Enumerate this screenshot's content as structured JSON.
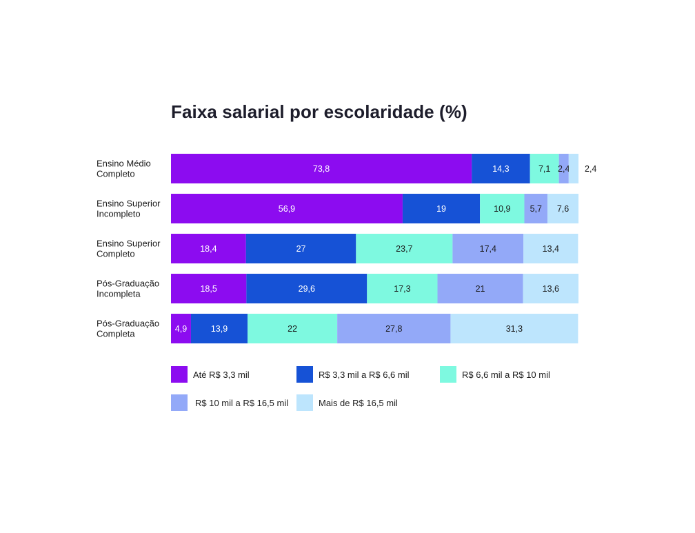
{
  "chart_data": {
    "type": "bar",
    "orientation": "horizontal",
    "stacked": true,
    "title": "Faixa salarial por escolaridade (%)",
    "categories": [
      [
        "Ensino Médio",
        "Completo"
      ],
      [
        "Ensino Superior",
        "Incompleto"
      ],
      [
        "Ensino Superior",
        "Completo"
      ],
      [
        "Pós-Graduação",
        "Incompleta"
      ],
      [
        "Pós-Graduação",
        "Completa"
      ]
    ],
    "series": [
      {
        "name": "Até R$ 3,3 mil",
        "color": "#8c0cf0",
        "label_color": "#ffffff",
        "values": [
          73.8,
          56.9,
          18.4,
          18.5,
          4.9
        ]
      },
      {
        "name": "R$ 3,3 mil a R$ 6,6 mil",
        "color": "#1652d6",
        "label_color": "#ffffff",
        "values": [
          14.3,
          19,
          27,
          29.6,
          13.9
        ]
      },
      {
        "name": "R$ 6,6 mil a R$ 10 mil",
        "color": "#7ef9e0",
        "label_color": "#1a1a1a",
        "values": [
          7.1,
          10.9,
          23.7,
          17.3,
          22
        ]
      },
      {
        "name": "R$ 10 mil a R$ 16,5 mil",
        "color": "#93a9f8",
        "label_color": "#1a1a1a",
        "values": [
          2.4,
          5.7,
          17.4,
          21,
          27.8
        ]
      },
      {
        "name": "Mais de R$ 16,5 mil",
        "color": "#bde5fd",
        "label_color": "#1a1a1a",
        "values": [
          2.4,
          7.6,
          13.4,
          13.6,
          31.3
        ]
      }
    ],
    "xlim": [
      0,
      100
    ],
    "grid": false,
    "legend_position": "bottom"
  }
}
